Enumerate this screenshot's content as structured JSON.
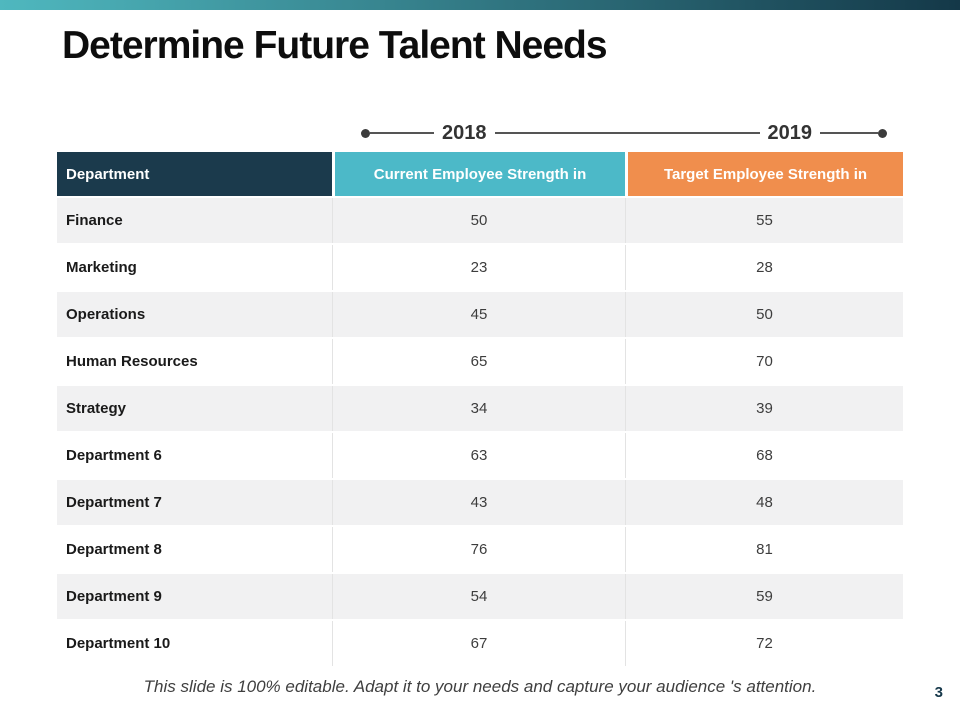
{
  "slide": {
    "title": "Determine Future Talent Needs",
    "footer": "This slide is 100% editable. Adapt it to your needs and capture your  audience 's attention.",
    "page_number": "3"
  },
  "timeline": {
    "left_year": "2018",
    "right_year": "2019"
  },
  "table": {
    "columns": [
      "Department",
      "Current Employee Strength in",
      "Target Employee Strength in"
    ],
    "rows": [
      {
        "department": "Finance",
        "current": "50",
        "target": "55"
      },
      {
        "department": "Marketing",
        "current": "23",
        "target": "28"
      },
      {
        "department": "Operations",
        "current": "45",
        "target": "50"
      },
      {
        "department": "Human Resources",
        "current": "65",
        "target": "70"
      },
      {
        "department": "Strategy",
        "current": "34",
        "target": "39"
      },
      {
        "department": "Department 6",
        "current": "63",
        "target": "68"
      },
      {
        "department": "Department 7",
        "current": "43",
        "target": "48"
      },
      {
        "department": "Department 8",
        "current": "76",
        "target": "81"
      },
      {
        "department": "Department 9",
        "current": "54",
        "target": "59"
      },
      {
        "department": "Department 10",
        "current": "67",
        "target": "72"
      }
    ]
  },
  "colors": {
    "header_dark": "#1b3a4c",
    "accent_teal": "#4cb9c8",
    "accent_orange": "#f08e4d",
    "row_alt": "#f1f1f2",
    "topbar_start": "#4fb8bf",
    "topbar_end": "#143848"
  }
}
